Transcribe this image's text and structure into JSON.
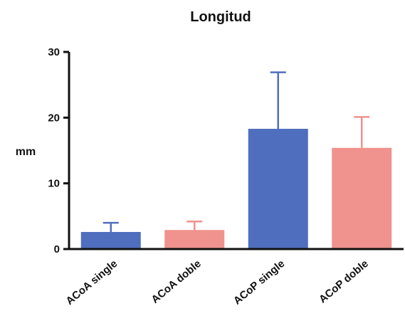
{
  "chart_data": {
    "type": "bar",
    "title": "Longitud",
    "xlabel": "",
    "ylabel": "mm",
    "ylim": [
      0,
      30
    ],
    "yticks": [
      0,
      10,
      20,
      30
    ],
    "categories": [
      "ACoA single",
      "ACoA doble",
      "ACoP single",
      "ACoP doble"
    ],
    "values": [
      2.6,
      2.9,
      18.3,
      15.4
    ],
    "error_upper": [
      1.4,
      1.3,
      8.6,
      4.7
    ],
    "colors": [
      "#4f6ebd",
      "#f0928d",
      "#4f6ebd",
      "#f0928d"
    ],
    "grid": false,
    "legend": "none"
  }
}
